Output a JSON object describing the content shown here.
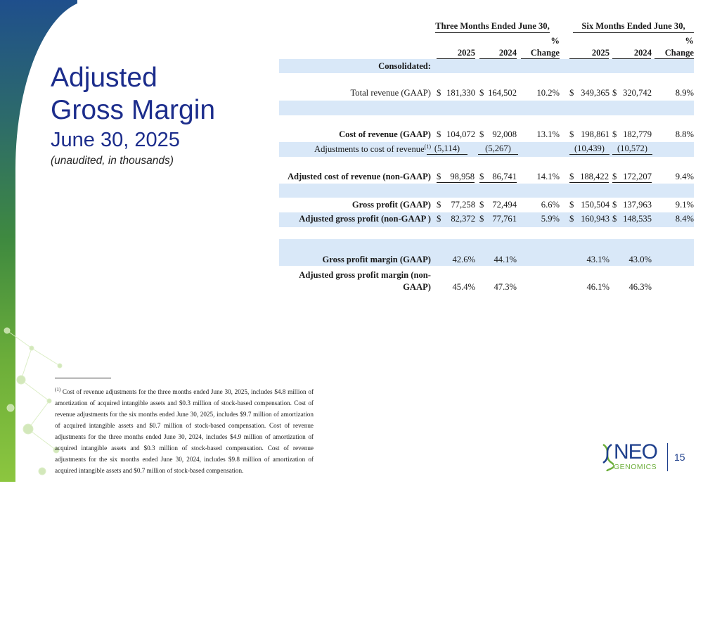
{
  "title": {
    "line1": "Adjusted",
    "line2": "Gross Margin",
    "date": "June 30, 2025",
    "subtitle": "(unaudited, in thousands)"
  },
  "table": {
    "group_headers": [
      "Three Months Ended June 30,",
      "Six Months Ended June 30,"
    ],
    "columns": [
      "2025",
      "2024",
      "% Change",
      "2025",
      "2024",
      "% Change"
    ],
    "pct_symbol": "%",
    "change_label": "Change",
    "section_label": "Consolidated:",
    "rows": [
      {
        "label": "Total revenue (GAAP)",
        "values": [
          "181,330",
          "164,502",
          "10.2%",
          "349,365",
          "320,742",
          "8.9%"
        ],
        "dollar": true
      },
      {
        "label": "Cost of revenue (GAAP)",
        "values": [
          "104,072",
          "92,008",
          "13.1%",
          "198,861",
          "182,779",
          "8.8%"
        ],
        "dollar": true
      },
      {
        "label": "Adjustments to cost of revenue",
        "label_sup": "(1)",
        "values": [
          "(5,114)",
          "(5,267)",
          "",
          "(10,439)",
          "(10,572)",
          ""
        ],
        "dollar": false
      },
      {
        "label": "Adjusted cost of revenue (non-GAAP)",
        "values": [
          "98,958",
          "86,741",
          "14.1%",
          "188,422",
          "172,207",
          "9.4%"
        ],
        "dollar": true
      },
      {
        "label": "Gross profit (GAAP)",
        "values": [
          "77,258",
          "72,494",
          "6.6%",
          "150,504",
          "137,963",
          "9.1%"
        ],
        "dollar": true
      },
      {
        "label": "Adjusted gross profit (non-GAAP )",
        "values": [
          "82,372",
          "77,761",
          "5.9%",
          "160,943",
          "148,535",
          "8.4%"
        ],
        "dollar": true
      },
      {
        "label": "Gross profit margin (GAAP)",
        "values": [
          "42.6%",
          "44.1%",
          "",
          "43.1%",
          "43.0%",
          ""
        ],
        "dollar": false
      },
      {
        "label_line1": "Adjusted gross profit margin (non-",
        "label_line2": "GAAP)",
        "values": [
          "45.4%",
          "47.3%",
          "",
          "46.1%",
          "46.3%",
          ""
        ],
        "dollar": false
      }
    ],
    "dollar_sign": "$"
  },
  "footnote": {
    "marker": "(1)",
    "text": "Cost of revenue adjustments for the three months ended June 30, 2025, includes $4.8 million of amortization of acquired intangible assets and $0.3 million of stock-based compensation. Cost of revenue adjustments for the six months ended June 30, 2025, includes $9.7 million of amortization of acquired intangible assets and $0.7 million of stock-based compensation. Cost of revenue adjustments for the three months ended June 30, 2024, includes $4.9 million of amortization of acquired intangible assets and $0.3 million of stock-based compensation. Cost of revenue adjustments for the six months ended June 30, 2024, includes $9.8 million of amortization of acquired intangible assets and $0.7 million of stock-based compensation."
  },
  "logo": {
    "line1": "NEO",
    "line2": "GENOMICS"
  },
  "page_number": "15",
  "colors": {
    "title": "#1c2d8c",
    "band_row": "#d9e8f8",
    "logo_blue": "#1e3f8c",
    "logo_green": "#6cae3a"
  }
}
